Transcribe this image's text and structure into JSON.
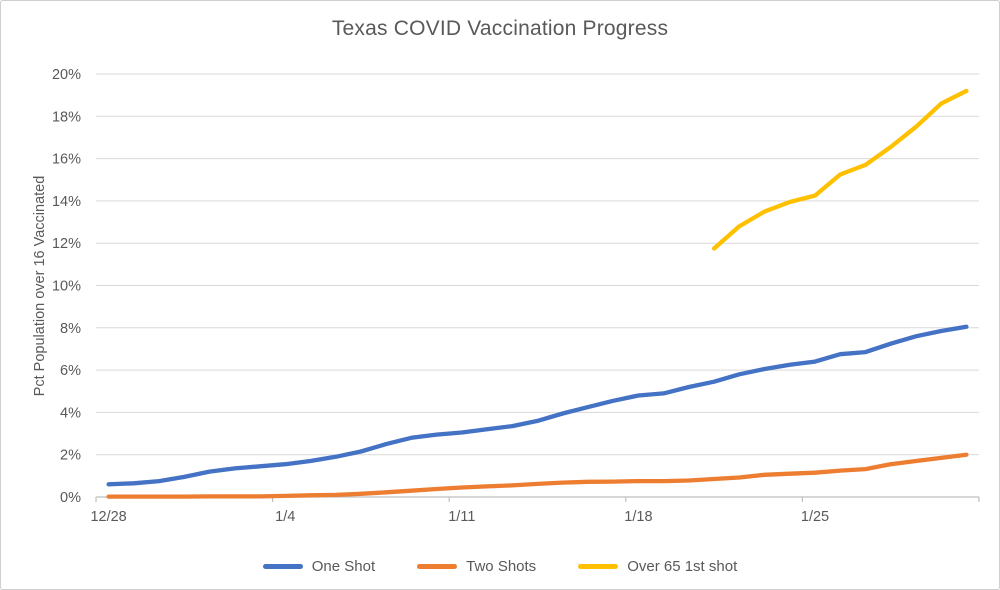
{
  "page": {
    "background": "#ffffff",
    "frame_border_color": "#cfcfcf"
  },
  "chart_data": {
    "type": "line",
    "title": "Texas COVID Vaccination Progress",
    "xlabel": "",
    "ylabel": "Pct Population over 16 Vaccinated",
    "ylim": [
      0,
      20
    ],
    "y_tick_interval": 2,
    "y_tick_labels": [
      "0%",
      "2%",
      "4%",
      "6%",
      "8%",
      "10%",
      "12%",
      "14%",
      "16%",
      "18%",
      "20%"
    ],
    "grid": "horizontal",
    "grid_color": "#d9d9d9",
    "axis_color": "#bfbfbf",
    "text_color": "#595959",
    "legend_position": "bottom",
    "categories": [
      "12/28",
      "12/29",
      "12/30",
      "12/31",
      "1/1",
      "1/2",
      "1/3",
      "1/4",
      "1/5",
      "1/6",
      "1/7",
      "1/8",
      "1/9",
      "1/10",
      "1/11",
      "1/12",
      "1/13",
      "1/14",
      "1/15",
      "1/16",
      "1/17",
      "1/18",
      "1/19",
      "1/20",
      "1/21",
      "1/22",
      "1/23",
      "1/24",
      "1/25",
      "1/26",
      "1/27",
      "1/28",
      "1/29",
      "1/30",
      "1/31"
    ],
    "x_tick_labels": {
      "indices": [
        0,
        7,
        14,
        21,
        28
      ],
      "labels": [
        "12/28",
        "1/4",
        "1/11",
        "1/18",
        "1/25"
      ]
    },
    "series": [
      {
        "name": "One Shot",
        "color": "#4472C4",
        "values": [
          0.6,
          0.65,
          0.75,
          0.95,
          1.2,
          1.35,
          1.45,
          1.55,
          1.7,
          1.9,
          2.15,
          2.5,
          2.8,
          2.95,
          3.05,
          3.2,
          3.35,
          3.6,
          3.95,
          4.25,
          4.55,
          4.8,
          4.9,
          5.2,
          5.45,
          5.8,
          6.05,
          6.25,
          6.4,
          6.75,
          6.85,
          7.25,
          7.6,
          7.85,
          8.05
        ]
      },
      {
        "name": "Two Shots",
        "color": "#ED7D31",
        "values": [
          0.02,
          0.02,
          0.02,
          0.02,
          0.03,
          0.03,
          0.03,
          0.05,
          0.08,
          0.1,
          0.15,
          0.22,
          0.3,
          0.38,
          0.45,
          0.5,
          0.55,
          0.62,
          0.68,
          0.72,
          0.73,
          0.75,
          0.75,
          0.78,
          0.85,
          0.92,
          1.05,
          1.1,
          1.15,
          1.25,
          1.32,
          1.55,
          1.7,
          1.85,
          2.0
        ]
      },
      {
        "name": "Over 65 1st shot",
        "color": "#FFC000",
        "values": [
          null,
          null,
          null,
          null,
          null,
          null,
          null,
          null,
          null,
          null,
          null,
          null,
          null,
          null,
          null,
          null,
          null,
          null,
          null,
          null,
          null,
          null,
          null,
          null,
          11.75,
          12.8,
          13.5,
          13.95,
          14.25,
          15.25,
          15.7,
          16.55,
          17.5,
          18.6,
          19.2
        ]
      }
    ]
  }
}
